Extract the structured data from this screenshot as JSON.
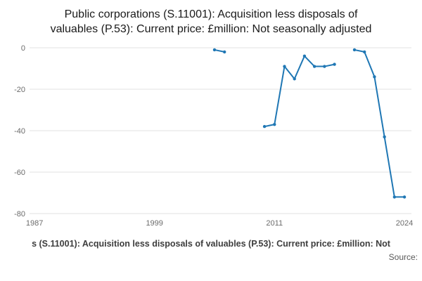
{
  "title": {
    "text": "Public corporations (S.11001): Acquisition less disposals of valuables (P.53): Current price: £million: Not seasonally adjusted"
  },
  "caption": {
    "text": "s (S.11001): Acquisition less disposals of valuables (P.53): Current price: £million: Not"
  },
  "source": {
    "label": "Source:"
  },
  "chart_data": {
    "type": "line",
    "title": "Public corporations (S.11001): Acquisition less disposals of valuables (P.53): Current price: £million: Not seasonally adjusted",
    "xlabel": "",
    "ylabel": "",
    "x_ticks": [
      1987,
      1999,
      2011,
      2024
    ],
    "y_ticks": [
      0,
      -20,
      -40,
      -60,
      -80
    ],
    "x_range": [
      1986.5,
      2024.7
    ],
    "y_range": [
      -80,
      0
    ],
    "grid": "horizontal-only",
    "legend": "none",
    "line_color": "#1f77b4",
    "gridline_color": "#e0e0e0",
    "tick_label_color": "#6b6b6b",
    "series": [
      {
        "segments": [
          [
            [
              2005,
              -1
            ],
            [
              2006,
              -2
            ]
          ],
          [
            [
              2010,
              -38
            ],
            [
              2011,
              -37
            ],
            [
              2012,
              -9
            ],
            [
              2013,
              -15
            ],
            [
              2014,
              -4
            ],
            [
              2015,
              -9
            ],
            [
              2016,
              -9
            ],
            [
              2017,
              -8
            ]
          ],
          [
            [
              2019,
              -1
            ],
            [
              2020,
              -2
            ],
            [
              2021,
              -14
            ],
            [
              2022,
              -43
            ],
            [
              2023,
              -72
            ],
            [
              2024,
              -72
            ]
          ]
        ]
      }
    ]
  }
}
